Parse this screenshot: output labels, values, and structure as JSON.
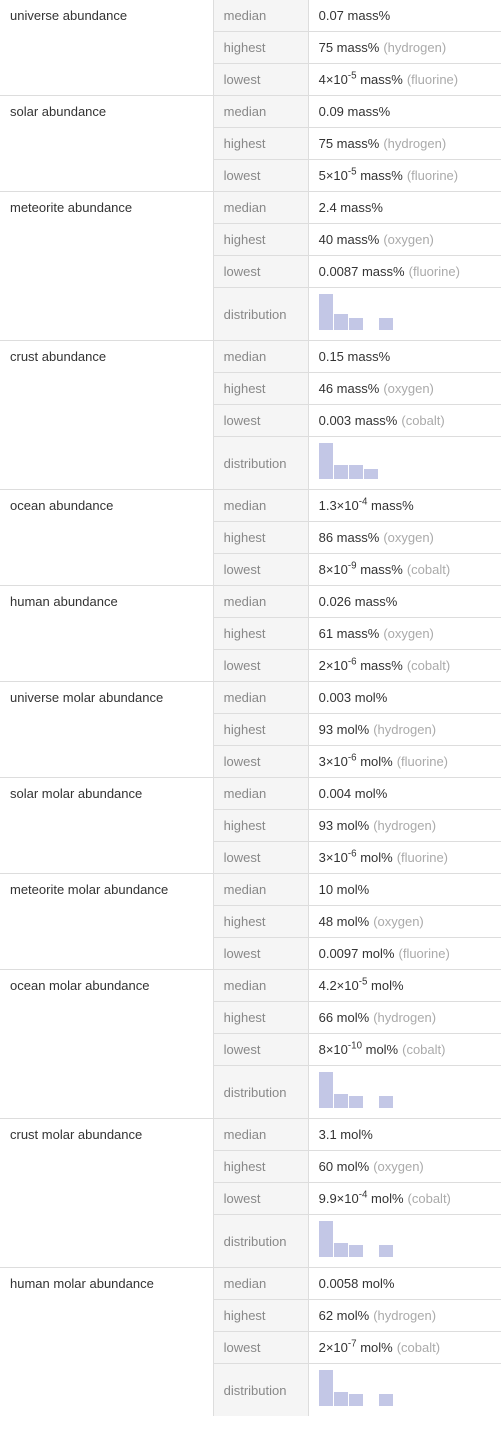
{
  "groups": [
    {
      "name": "universe abundance",
      "rows": [
        {
          "label": "median",
          "value": "0.07 mass%",
          "note": ""
        },
        {
          "label": "highest",
          "value": "75 mass%",
          "note": "(hydrogen)"
        },
        {
          "label": "lowest",
          "value": "4×10^-5 mass%",
          "exp": -5,
          "mant": "4",
          "unit": "mass%",
          "note": "(fluorine)"
        }
      ]
    },
    {
      "name": "solar abundance",
      "rows": [
        {
          "label": "median",
          "value": "0.09 mass%",
          "note": ""
        },
        {
          "label": "highest",
          "value": "75 mass%",
          "note": "(hydrogen)"
        },
        {
          "label": "lowest",
          "value": "5×10^-5 mass%",
          "exp": -5,
          "mant": "5",
          "unit": "mass%",
          "note": "(fluorine)"
        }
      ]
    },
    {
      "name": "meteorite abundance",
      "rows": [
        {
          "label": "median",
          "value": "2.4 mass%",
          "note": ""
        },
        {
          "label": "highest",
          "value": "40 mass%",
          "note": "(oxygen)"
        },
        {
          "label": "lowest",
          "value": "0.0087 mass%",
          "note": "(fluorine)"
        },
        {
          "label": "distribution",
          "chart": [
            36,
            16,
            12,
            0,
            12,
            0,
            0,
            0
          ]
        }
      ]
    },
    {
      "name": "crust abundance",
      "rows": [
        {
          "label": "median",
          "value": "0.15 mass%",
          "note": ""
        },
        {
          "label": "highest",
          "value": "46 mass%",
          "note": "(oxygen)"
        },
        {
          "label": "lowest",
          "value": "0.003 mass%",
          "note": "(cobalt)"
        },
        {
          "label": "distribution",
          "chart": [
            36,
            14,
            14,
            10,
            0,
            0,
            0,
            0
          ]
        }
      ]
    },
    {
      "name": "ocean abundance",
      "rows": [
        {
          "label": "median",
          "value": "1.3×10^-4 mass%",
          "exp": -4,
          "mant": "1.3",
          "unit": "mass%",
          "note": ""
        },
        {
          "label": "highest",
          "value": "86 mass%",
          "note": "(oxygen)"
        },
        {
          "label": "lowest",
          "value": "8×10^-9 mass%",
          "exp": -9,
          "mant": "8",
          "unit": "mass%",
          "note": "(cobalt)"
        }
      ]
    },
    {
      "name": "human abundance",
      "rows": [
        {
          "label": "median",
          "value": "0.026 mass%",
          "note": ""
        },
        {
          "label": "highest",
          "value": "61 mass%",
          "note": "(oxygen)"
        },
        {
          "label": "lowest",
          "value": "2×10^-6 mass%",
          "exp": -6,
          "mant": "2",
          "unit": "mass%",
          "note": "(cobalt)"
        }
      ]
    },
    {
      "name": "universe molar abundance",
      "rows": [
        {
          "label": "median",
          "value": "0.003 mol%",
          "note": ""
        },
        {
          "label": "highest",
          "value": "93 mol%",
          "note": "(hydrogen)"
        },
        {
          "label": "lowest",
          "value": "3×10^-6 mol%",
          "exp": -6,
          "mant": "3",
          "unit": "mol%",
          "note": "(fluorine)"
        }
      ]
    },
    {
      "name": "solar molar abundance",
      "rows": [
        {
          "label": "median",
          "value": "0.004 mol%",
          "note": ""
        },
        {
          "label": "highest",
          "value": "93 mol%",
          "note": "(hydrogen)"
        },
        {
          "label": "lowest",
          "value": "3×10^-6 mol%",
          "exp": -6,
          "mant": "3",
          "unit": "mol%",
          "note": "(fluorine)"
        }
      ]
    },
    {
      "name": "meteorite molar abundance",
      "rows": [
        {
          "label": "median",
          "value": "10 mol%",
          "note": ""
        },
        {
          "label": "highest",
          "value": "48 mol%",
          "note": "(oxygen)"
        },
        {
          "label": "lowest",
          "value": "0.0097 mol%",
          "note": "(fluorine)"
        }
      ]
    },
    {
      "name": "ocean molar abundance",
      "rows": [
        {
          "label": "median",
          "value": "4.2×10^-5 mol%",
          "exp": -5,
          "mant": "4.2",
          "unit": "mol%",
          "note": ""
        },
        {
          "label": "highest",
          "value": "66 mol%",
          "note": "(hydrogen)"
        },
        {
          "label": "lowest",
          "value": "8×10^-10 mol%",
          "exp": -10,
          "mant": "8",
          "unit": "mol%",
          "note": "(cobalt)"
        },
        {
          "label": "distribution",
          "chart": [
            36,
            14,
            12,
            0,
            12,
            0,
            0,
            0
          ]
        }
      ]
    },
    {
      "name": "crust molar abundance",
      "rows": [
        {
          "label": "median",
          "value": "3.1 mol%",
          "note": ""
        },
        {
          "label": "highest",
          "value": "60 mol%",
          "note": "(oxygen)"
        },
        {
          "label": "lowest",
          "value": "9.9×10^-4 mol%",
          "exp": -4,
          "mant": "9.9",
          "unit": "mol%",
          "note": "(cobalt)"
        },
        {
          "label": "distribution",
          "chart": [
            36,
            14,
            12,
            0,
            12,
            0,
            0,
            0
          ]
        }
      ]
    },
    {
      "name": "human molar abundance",
      "rows": [
        {
          "label": "median",
          "value": "0.0058 mol%",
          "note": ""
        },
        {
          "label": "highest",
          "value": "62 mol%",
          "note": "(hydrogen)"
        },
        {
          "label": "lowest",
          "value": "2×10^-7 mol%",
          "exp": -7,
          "mant": "2",
          "unit": "mol%",
          "note": "(cobalt)"
        },
        {
          "label": "distribution",
          "chart": [
            36,
            14,
            12,
            0,
            12,
            0,
            0,
            0
          ]
        }
      ]
    }
  ],
  "style": {
    "bar_color": "#c3c7e6",
    "label_bg": "#f5f5f5",
    "label_fg": "#888888",
    "value_fg": "#333333",
    "note_fg": "#aaaaaa",
    "border": "#dddddd"
  }
}
